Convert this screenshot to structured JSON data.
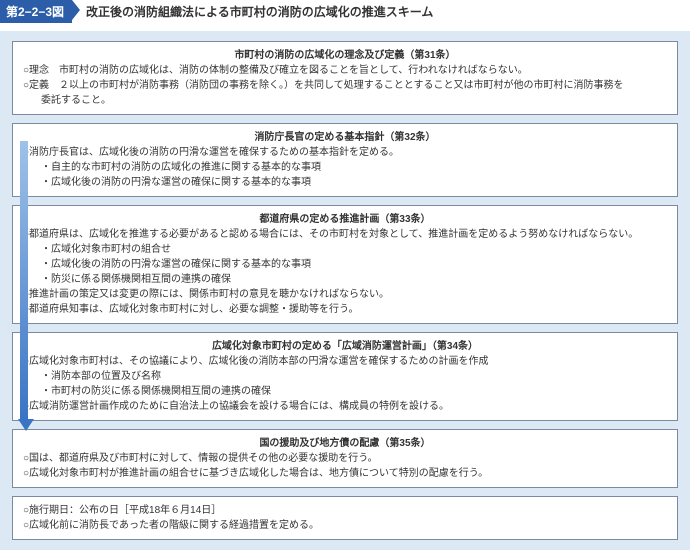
{
  "header": {
    "badge": "第2−2−3図",
    "title": "改正後の消防組織法による市町村の消防の広域化の推進スキーム"
  },
  "boxes": {
    "b1": {
      "title": "市町村の消防の広域化の理念及び定義（第31条）",
      "lines": [
        "○理念　市町村の消防の広域化は、消防の体制の整備及び確立を図ることを旨として、行われなければならない。",
        "○定義　２以上の市町村が消防事務（消防団の事務を除く。）を共同して処理することとすること又は市町村が他の市町村に消防事務を",
        "委託すること。"
      ]
    },
    "b2": {
      "title": "消防庁長官の定める基本指針（第32条）",
      "lines": [
        "○消防庁長官は、広域化後の消防の円滑な運営を確保するための基本指針を定める。",
        "・自主的な市町村の消防の広域化の推進に関する基本的な事項",
        "・広域化後の消防の円滑な運営の確保に関する基本的な事項"
      ]
    },
    "b3": {
      "title": "都道府県の定める推進計画（第33条）",
      "lines": [
        "○都道府県は、広域化を推進する必要があると認める場合には、その市町村を対象として、推進計画を定めるよう努めなければならない。",
        "・広域化対象市町村の組合せ",
        "・広域化後の消防の円滑な運営の確保に関する基本的な事項",
        "・防災に係る関係機関相互間の連携の確保",
        "○推進計画の策定又は変更の際には、関係市町村の意見を聴かなければならない。",
        "○都道府県知事は、広域化対象市町村に対し、必要な調整・援助等を行う。"
      ]
    },
    "b4": {
      "title": "広域化対象市町村の定める「広域消防運営計画」（第34条）",
      "lines": [
        "○広域化対象市町村は、その協議により、広域化後の消防本部の円滑な運営を確保するための計画を作成",
        "・消防本部の位置及び名称",
        "・市町村の防災に係る関係機関相互間の連携の確保",
        "○広域消防運営計画作成のために自治法上の協議会を設ける場合には、構成員の特例を設ける。"
      ]
    },
    "b5": {
      "title": "国の援助及び地方債の配慮（第35条）",
      "lines": [
        "○国は、都道府県及び市町村に対して、情報の提供その他の必要な援助を行う。",
        "○広域化対象市町村が推進計画の組合せに基づき広域化した場合は、地方債について特別の配慮を行う。"
      ]
    },
    "b6": {
      "lines": [
        "○施行期日：公布の日［平成18年６月14日］",
        "○広域化前に消防長であった者の階級に関する経過措置を定める。"
      ]
    }
  }
}
